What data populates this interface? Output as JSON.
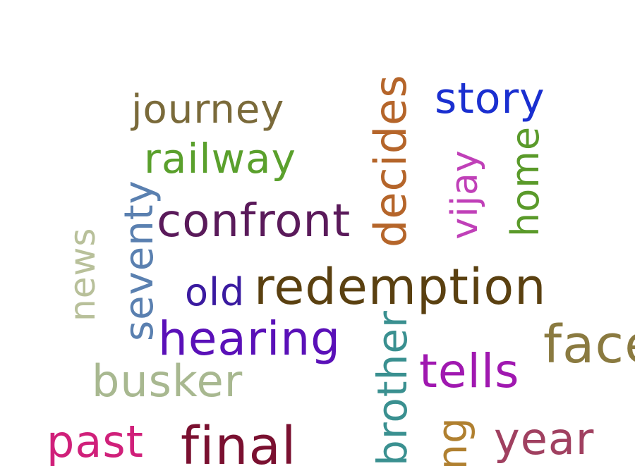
{
  "words": {
    "journey": {
      "text": "journey",
      "color": "#7a6a3a"
    },
    "railway": {
      "text": "railway",
      "color": "#5aa02c"
    },
    "story": {
      "text": "story",
      "color": "#1a2fd0"
    },
    "decides": {
      "text": "decides",
      "color": "#b5652a"
    },
    "vijay": {
      "text": "vijay",
      "color": "#c040b8"
    },
    "home": {
      "text": "home",
      "color": "#5a9a2a"
    },
    "confront": {
      "text": "confront",
      "color": "#5a1a5a"
    },
    "seventy": {
      "text": "seventy",
      "color": "#5a80b0"
    },
    "news": {
      "text": "news",
      "color": "#b8c09a"
    },
    "old": {
      "text": "old",
      "color": "#3a1aa0"
    },
    "redemption": {
      "text": "redemption",
      "color": "#5a4010"
    },
    "hearing": {
      "text": "hearing",
      "color": "#5a10b8"
    },
    "busker": {
      "text": "busker",
      "color": "#a8b890"
    },
    "brother": {
      "text": "brother",
      "color": "#3a9090"
    },
    "tells": {
      "text": "tells",
      "color": "#a018b0"
    },
    "faces": {
      "text": "face",
      "color": "#8a7a40"
    },
    "past": {
      "text": "past",
      "color": "#d0207a"
    },
    "final": {
      "text": "final",
      "color": "#7a1030"
    },
    "song": {
      "text": "ng",
      "color": "#b08030"
    },
    "year": {
      "text": "year",
      "color": "#a04060"
    }
  }
}
